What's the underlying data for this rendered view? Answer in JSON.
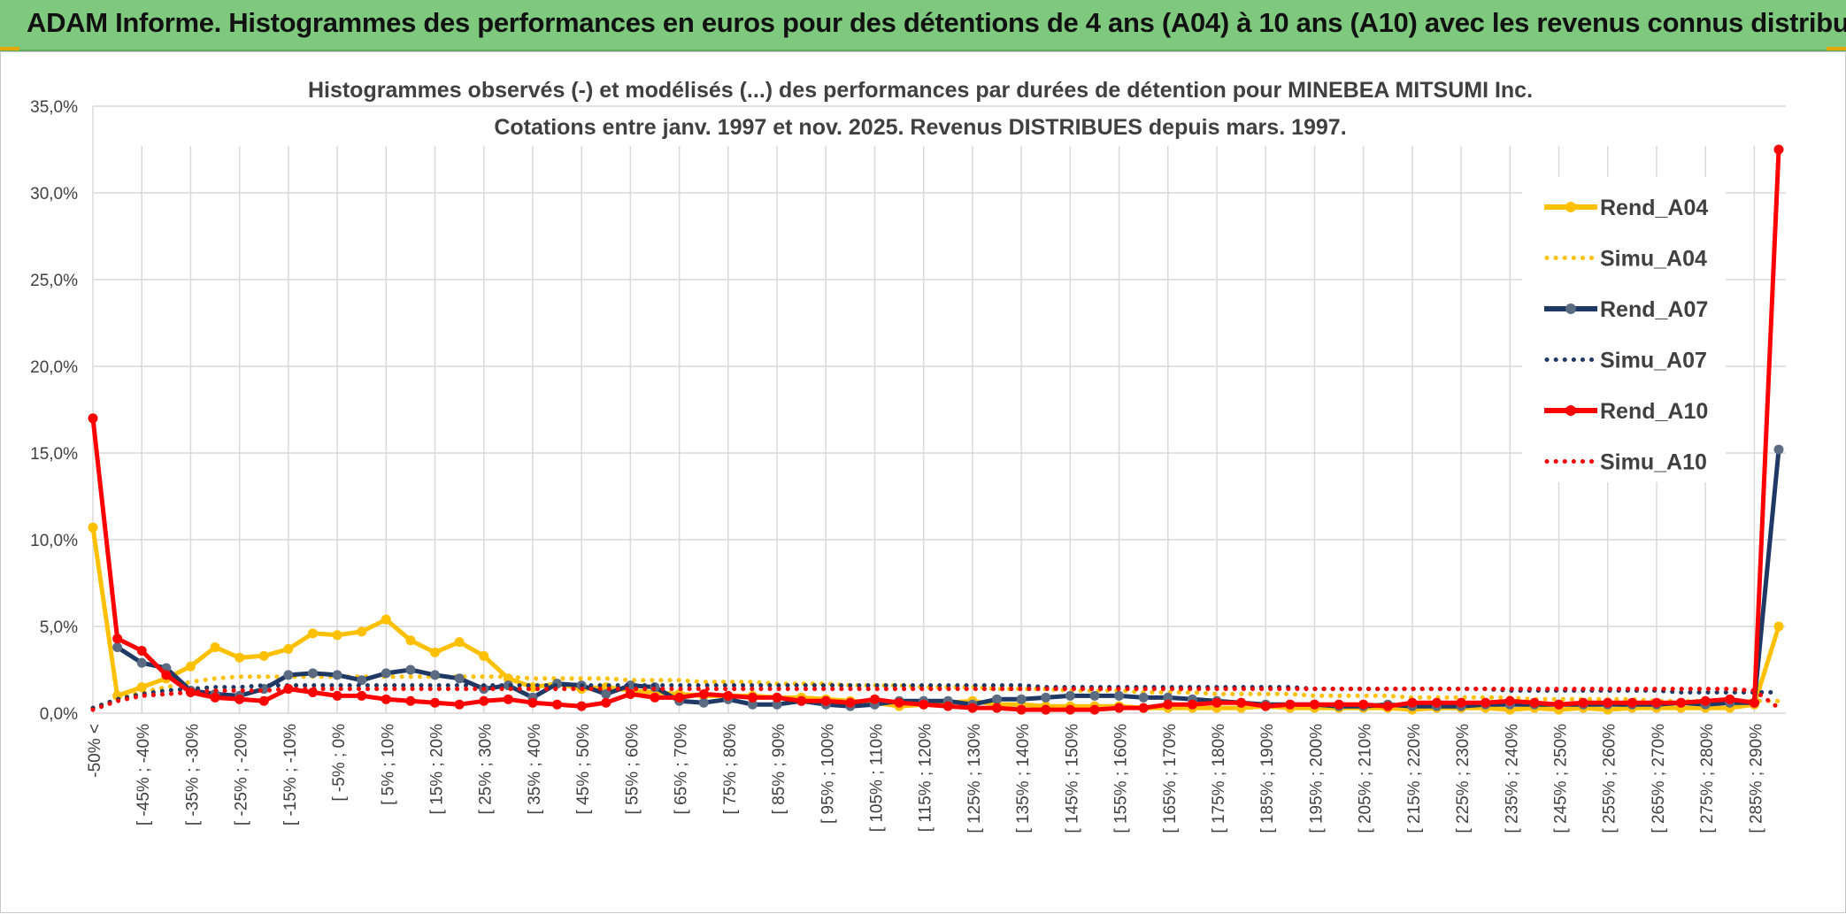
{
  "header": {
    "title": "ADAM Informe. Histogrammes des performances en euros pour des détentions de 4 ans (A04) à 10 ans (A10) avec les revenus connus distribués"
  },
  "chart_data": {
    "type": "line",
    "title_line1": "Histogrammes observés (-) et modélisés (...) des performances par durées de détention pour MINEBEA MITSUMI Inc.",
    "title_line2": "Cotations entre janv. 1997 et nov. 2025. Revenus DISTRIBUES depuis mars. 1997.",
    "ylim": [
      0,
      35
    ],
    "yticks": [
      "0,0%",
      "5,0%",
      "10,0%",
      "15,0%",
      "20,0%",
      "25,0%",
      "30,0%",
      "35,0%"
    ],
    "tick_labels": [
      "-50% <",
      "[ -45% ; -40%",
      "[ -35% ; -30%",
      "[ -25% ; -20%",
      "[ -15% ; -10%",
      "[ -5% ; 0%",
      "[ 5% ; 10%",
      "[ 15% ; 20%",
      "[ 25% ; 30%",
      "[ 35% ; 40%",
      "[ 45% ; 50%",
      "[ 55% ; 60%",
      "[ 65% ; 70%",
      "[ 75% ; 80%",
      "[ 85% ; 90%",
      "[ 95% ; 100%",
      "[ 105% ; 110%",
      "[ 115% ; 120%",
      "[ 125% ; 130%",
      "[ 135% ; 140%",
      "[ 145% ; 150%",
      "[ 155% ; 160%",
      "[ 165% ; 170%",
      "[ 175% ; 180%",
      "[ 185% ; 190%",
      "[ 195% ; 200%",
      "[ 205% ; 210%",
      "[ 215% ; 220%",
      "[ 225% ; 230%",
      "[ 235% ; 240%",
      "[ 245% ; 250%",
      "[ 255% ; 260%",
      "[ 265% ; 270%",
      "[ 275% ; 280%",
      "[ 285% ; 290%"
    ],
    "n_points": 70,
    "series": [
      {
        "name": "Rend_A04",
        "color": "#ffc000",
        "style": "solid",
        "values": [
          10.7,
          1.0,
          1.5,
          2.0,
          2.7,
          3.8,
          3.2,
          3.3,
          3.7,
          4.6,
          4.5,
          4.7,
          5.4,
          4.2,
          3.5,
          4.1,
          3.3,
          2.0,
          1.5,
          1.7,
          1.4,
          1.5,
          1.3,
          1.2,
          1.1,
          1.0,
          1.0,
          1.0,
          0.9,
          0.9,
          0.8,
          0.7,
          0.6,
          0.4,
          0.5,
          0.6,
          0.7,
          0.5,
          0.5,
          0.4,
          0.4,
          0.4,
          0.4,
          0.3,
          0.3,
          0.3,
          0.3,
          0.3,
          0.4,
          0.3,
          0.3,
          0.3,
          0.3,
          0.3,
          0.2,
          0.3,
          0.3,
          0.3,
          0.2,
          0.3,
          0.2,
          0.3,
          0.2,
          0.3,
          0.3,
          0.3,
          0.3,
          0.3,
          0.5,
          5.0
        ]
      },
      {
        "name": "Simu_A04",
        "color": "#ffc000",
        "style": "dotted",
        "values": [
          0.3,
          0.8,
          1.2,
          1.5,
          1.8,
          2.0,
          2.1,
          2.1,
          2.1,
          2.1,
          2.1,
          2.1,
          2.1,
          2.1,
          2.1,
          2.1,
          2.1,
          2.1,
          2.0,
          2.0,
          2.0,
          2.0,
          1.9,
          1.9,
          1.9,
          1.8,
          1.8,
          1.8,
          1.7,
          1.7,
          1.7,
          1.6,
          1.6,
          1.6,
          1.5,
          1.5,
          1.5,
          1.4,
          1.4,
          1.4,
          1.3,
          1.3,
          1.3,
          1.2,
          1.2,
          1.2,
          1.1,
          1.1,
          1.1,
          1.1,
          1.0,
          1.0,
          1.0,
          1.0,
          0.9,
          0.9,
          0.9,
          0.9,
          0.9,
          0.8,
          0.8,
          0.8,
          0.8,
          0.8,
          0.7,
          0.7,
          0.7,
          0.7,
          0.7,
          0.7
        ]
      },
      {
        "name": "Rend_A07",
        "color": "#1f3864",
        "style": "solid",
        "markerColor": "#5a6b82",
        "values": [
          null,
          3.8,
          2.9,
          2.6,
          1.3,
          1.1,
          1.0,
          1.4,
          2.2,
          2.3,
          2.2,
          1.9,
          2.3,
          2.5,
          2.2,
          2.0,
          1.4,
          1.6,
          0.9,
          1.7,
          1.6,
          1.1,
          1.6,
          1.5,
          0.7,
          0.6,
          0.8,
          0.5,
          0.5,
          0.7,
          0.5,
          0.4,
          0.5,
          0.7,
          0.7,
          0.7,
          0.5,
          0.8,
          0.8,
          0.9,
          1.0,
          1.0,
          1.0,
          0.9,
          0.9,
          0.8,
          0.7,
          0.6,
          0.5,
          0.5,
          0.5,
          0.4,
          0.4,
          0.5,
          0.4,
          0.4,
          0.4,
          0.5,
          0.5,
          0.5,
          0.5,
          0.5,
          0.5,
          0.5,
          0.5,
          0.6,
          0.5,
          0.6,
          0.6,
          15.2
        ]
      },
      {
        "name": "Simu_A07",
        "color": "#1f3864",
        "style": "dotted",
        "values": [
          0.3,
          0.8,
          1.1,
          1.3,
          1.4,
          1.5,
          1.5,
          1.6,
          1.6,
          1.6,
          1.6,
          1.6,
          1.6,
          1.6,
          1.6,
          1.6,
          1.6,
          1.6,
          1.6,
          1.6,
          1.6,
          1.6,
          1.6,
          1.6,
          1.6,
          1.6,
          1.6,
          1.6,
          1.6,
          1.6,
          1.6,
          1.6,
          1.6,
          1.6,
          1.6,
          1.6,
          1.6,
          1.6,
          1.6,
          1.5,
          1.5,
          1.5,
          1.5,
          1.5,
          1.5,
          1.5,
          1.5,
          1.5,
          1.5,
          1.5,
          1.4,
          1.4,
          1.4,
          1.4,
          1.4,
          1.4,
          1.4,
          1.4,
          1.3,
          1.3,
          1.3,
          1.3,
          1.3,
          1.3,
          1.3,
          1.2,
          1.2,
          1.2,
          1.2,
          1.2
        ]
      },
      {
        "name": "Rend_A10",
        "color": "#ff0000",
        "style": "solid",
        "values": [
          17.0,
          4.3,
          3.6,
          2.2,
          1.2,
          0.9,
          0.8,
          0.7,
          1.4,
          1.2,
          1.0,
          1.0,
          0.8,
          0.7,
          0.6,
          0.5,
          0.7,
          0.8,
          0.6,
          0.5,
          0.4,
          0.6,
          1.1,
          0.9,
          0.9,
          1.1,
          1.0,
          0.9,
          0.9,
          0.7,
          0.7,
          0.6,
          0.8,
          0.6,
          0.5,
          0.4,
          0.3,
          0.3,
          0.2,
          0.2,
          0.2,
          0.2,
          0.3,
          0.3,
          0.5,
          0.5,
          0.6,
          0.6,
          0.4,
          0.5,
          0.5,
          0.5,
          0.5,
          0.4,
          0.6,
          0.6,
          0.6,
          0.6,
          0.7,
          0.6,
          0.5,
          0.6,
          0.6,
          0.6,
          0.6,
          0.6,
          0.7,
          0.8,
          0.6,
          32.5
        ]
      },
      {
        "name": "Simu_A10",
        "color": "#ff0000",
        "style": "dotted",
        "values": [
          0.2,
          0.7,
          1.0,
          1.1,
          1.2,
          1.3,
          1.3,
          1.3,
          1.4,
          1.4,
          1.4,
          1.4,
          1.4,
          1.4,
          1.4,
          1.4,
          1.4,
          1.4,
          1.4,
          1.4,
          1.4,
          1.4,
          1.4,
          1.4,
          1.4,
          1.4,
          1.4,
          1.4,
          1.4,
          1.4,
          1.4,
          1.4,
          1.4,
          1.4,
          1.4,
          1.4,
          1.4,
          1.4,
          1.4,
          1.4,
          1.4,
          1.4,
          1.4,
          1.4,
          1.4,
          1.4,
          1.4,
          1.4,
          1.4,
          1.4,
          1.4,
          1.4,
          1.4,
          1.4,
          1.4,
          1.4,
          1.4,
          1.4,
          1.4,
          1.4,
          1.4,
          1.4,
          1.4,
          1.4,
          1.4,
          1.4,
          1.4,
          1.4,
          1.3,
          0.3
        ]
      }
    ]
  }
}
